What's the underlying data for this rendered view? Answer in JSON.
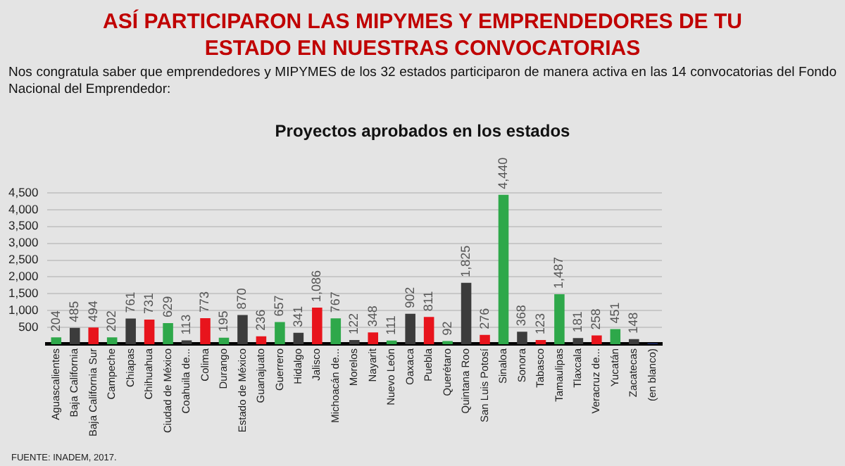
{
  "chart_data": {
    "type": "bar",
    "title": "ASÍ PARTICIPARON LAS MIPYMES Y EMPRENDEDORES DE TU ESTADO EN NUESTRAS CONVOCATORIAS",
    "subtitle": "Nos congratula saber que emprendedores y MIPYMES de los 32 estados participaron de manera activa en las 14 convocatorias del Fondo Nacional del Emprendedor:",
    "annotations": [
      "Proyectos aprobados en los estados",
      "FUENTE: INADEM, 2017."
    ],
    "categories": [
      "Aguascalientes",
      "Baja California",
      "Baja California Sur",
      "Campeche",
      "Chiapas",
      "Chihuahua",
      "Ciudad de México",
      "Coahuila de...",
      "Colima",
      "Durango",
      "Estado de México",
      "Guanajuato",
      "Guerrero",
      "Hidalgo",
      "Jalisco",
      "Michoacán de...",
      "Morelos",
      "Nayarit",
      "Nuevo León",
      "Oaxaca",
      "Puebla",
      "Querétaro",
      "Quintana Roo",
      "San Luis Potosí",
      "Sinaloa",
      "Sonora",
      "Tabasco",
      "Tamaulipas",
      "Tlaxcala",
      "Veracruz de...",
      "Yucatán",
      "Zacatecas",
      "(en blanco)"
    ],
    "values": [
      204,
      485,
      494,
      202,
      761,
      731,
      629,
      113,
      773,
      195,
      870,
      236,
      657,
      341,
      1086,
      767,
      122,
      348,
      111,
      902,
      811,
      92,
      1825,
      276,
      4440,
      368,
      123,
      1487,
      181,
      258,
      451,
      148,
      30
    ],
    "value_labels": [
      "204",
      "485",
      "494",
      "202",
      "761",
      "731",
      "629",
      "113",
      "773",
      "195",
      "870",
      "236",
      "657",
      "341",
      "1,086",
      "767",
      "122",
      "348",
      "111",
      "902",
      "811",
      "92",
      "1,825",
      "276",
      "4,440",
      "368",
      "123",
      "1,487",
      "181",
      "258",
      "451",
      "148",
      null
    ],
    "colors": [
      "#2ea84a",
      "#3c3c3c",
      "#e8141c",
      "#2ea84a",
      "#3c3c3c",
      "#e8141c",
      "#2ea84a",
      "#3c3c3c",
      "#e8141c",
      "#2ea84a",
      "#3c3c3c",
      "#e8141c",
      "#2ea84a",
      "#3c3c3c",
      "#e8141c",
      "#2ea84a",
      "#3c3c3c",
      "#e8141c",
      "#2ea84a",
      "#3c3c3c",
      "#e8141c",
      "#2ea84a",
      "#3c3c3c",
      "#e8141c",
      "#2ea84a",
      "#3c3c3c",
      "#e8141c",
      "#2ea84a",
      "#3c3c3c",
      "#e8141c",
      "#2ea84a",
      "#3c3c3c",
      "#1f2f6e"
    ],
    "ylim": [
      0,
      4500
    ],
    "yticks": [
      500,
      {
        "value": 1000,
        "label": "1,000"
      },
      {
        "value": 1500,
        "label": "1,500"
      },
      {
        "value": 2000,
        "label": "2,000"
      },
      {
        "value": 2500,
        "label": "2,500"
      },
      {
        "value": 3000,
        "label": "3,000"
      },
      {
        "value": 3500,
        "label": "3,500"
      },
      {
        "value": 4000,
        "label": "4,000"
      },
      {
        "value": 4500,
        "label": "4,500"
      }
    ],
    "grid": "y",
    "legend": false
  }
}
